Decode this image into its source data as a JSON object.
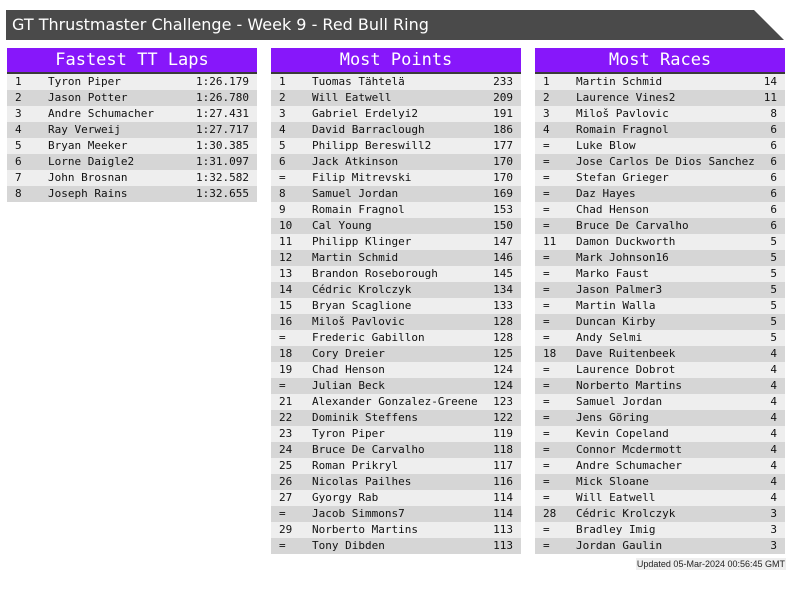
{
  "title": "GT Thrustmaster Challenge - Week 9 - Red Bull Ring",
  "tables": [
    {
      "heading": "Fastest TT Laps",
      "rows": [
        [
          "1",
          "Tyron Piper",
          "1:26.179"
        ],
        [
          "2",
          "Jason Potter",
          "1:26.780"
        ],
        [
          "3",
          "Andre Schumacher",
          "1:27.431"
        ],
        [
          "4",
          "Ray Verweij",
          "1:27.717"
        ],
        [
          "5",
          "Bryan Meeker",
          "1:30.385"
        ],
        [
          "6",
          "Lorne Daigle2",
          "1:31.097"
        ],
        [
          "7",
          "John Brosnan",
          "1:32.582"
        ],
        [
          "8",
          "Joseph Rains",
          "1:32.655"
        ]
      ]
    },
    {
      "heading": "Most Points",
      "rows": [
        [
          "1",
          "Tuomas Tähtelä",
          "233"
        ],
        [
          "2",
          "Will Eatwell",
          "209"
        ],
        [
          "3",
          "Gabriel Erdelyi2",
          "191"
        ],
        [
          "4",
          "David Barraclough",
          "186"
        ],
        [
          "5",
          "Philipp Bereswill2",
          "177"
        ],
        [
          "6",
          "Jack Atkinson",
          "170"
        ],
        [
          "=",
          "Filip Mitrevski",
          "170"
        ],
        [
          "8",
          "Samuel Jordan",
          "169"
        ],
        [
          "9",
          "Romain Fragnol",
          "153"
        ],
        [
          "10",
          "Cal Young",
          "150"
        ],
        [
          "11",
          "Philipp Klinger",
          "147"
        ],
        [
          "12",
          "Martin Schmid",
          "146"
        ],
        [
          "13",
          "Brandon Roseborough",
          "145"
        ],
        [
          "14",
          "Cédric Krolczyk",
          "134"
        ],
        [
          "15",
          "Bryan Scaglione",
          "133"
        ],
        [
          "16",
          "Miloš Pavlovic",
          "128"
        ],
        [
          "=",
          "Frederic Gabillon",
          "128"
        ],
        [
          "18",
          "Cory Dreier",
          "125"
        ],
        [
          "19",
          "Chad Henson",
          "124"
        ],
        [
          "=",
          "Julian Beck",
          "124"
        ],
        [
          "21",
          "Alexander Gonzalez-Greene",
          "123"
        ],
        [
          "22",
          "Dominik Steffens",
          "122"
        ],
        [
          "23",
          "Tyron Piper",
          "119"
        ],
        [
          "24",
          "Bruce De Carvalho",
          "118"
        ],
        [
          "25",
          "Roman Prikryl",
          "117"
        ],
        [
          "26",
          "Nicolas Pailhes",
          "116"
        ],
        [
          "27",
          "Gyorgy Rab",
          "114"
        ],
        [
          "=",
          "Jacob Simmons7",
          "114"
        ],
        [
          "29",
          "Norberto Martins",
          "113"
        ],
        [
          "=",
          "Tony Dibden",
          "113"
        ]
      ]
    },
    {
      "heading": "Most Races",
      "rows": [
        [
          "1",
          "Martin Schmid",
          "14"
        ],
        [
          "2",
          "Laurence Vines2",
          "11"
        ],
        [
          "3",
          "Miloš Pavlovic",
          "8"
        ],
        [
          "4",
          "Romain Fragnol",
          "6"
        ],
        [
          "=",
          "Luke Blow",
          "6"
        ],
        [
          "=",
          "Jose Carlos De Dios Sanchez",
          "6"
        ],
        [
          "=",
          "Stefan Grieger",
          "6"
        ],
        [
          "=",
          "Daz Hayes",
          "6"
        ],
        [
          "=",
          "Chad Henson",
          "6"
        ],
        [
          "=",
          "Bruce De Carvalho",
          "6"
        ],
        [
          "11",
          "Damon Duckworth",
          "5"
        ],
        [
          "=",
          "Mark Johnson16",
          "5"
        ],
        [
          "=",
          "Marko Faust",
          "5"
        ],
        [
          "=",
          "Jason Palmer3",
          "5"
        ],
        [
          "=",
          "Martin Walla",
          "5"
        ],
        [
          "=",
          "Duncan Kirby",
          "5"
        ],
        [
          "=",
          "Andy Selmi",
          "5"
        ],
        [
          "18",
          "Dave Ruitenbeek",
          "4"
        ],
        [
          "=",
          "Laurence Dobrot",
          "4"
        ],
        [
          "=",
          "Norberto Martins",
          "4"
        ],
        [
          "=",
          "Samuel Jordan",
          "4"
        ],
        [
          "=",
          "Jens Göring",
          "4"
        ],
        [
          "=",
          "Kevin Copeland",
          "4"
        ],
        [
          "=",
          "Connor Mcdermott",
          "4"
        ],
        [
          "=",
          "Andre Schumacher",
          "4"
        ],
        [
          "=",
          "Mick Sloane",
          "4"
        ],
        [
          "=",
          "Will Eatwell",
          "4"
        ],
        [
          "28",
          "Cédric Krolczyk",
          "3"
        ],
        [
          "=",
          "Bradley Imig",
          "3"
        ],
        [
          "=",
          "Jordan Gaulin",
          "3"
        ]
      ]
    }
  ],
  "footer": "Updated 05-Mar-2024 00:56:45 GMT",
  "colors": {
    "header_bg": "#8717fa",
    "title_bg": "#4a4a4a",
    "row_light": "#eeeeee",
    "row_dark": "#d6d6d6"
  }
}
